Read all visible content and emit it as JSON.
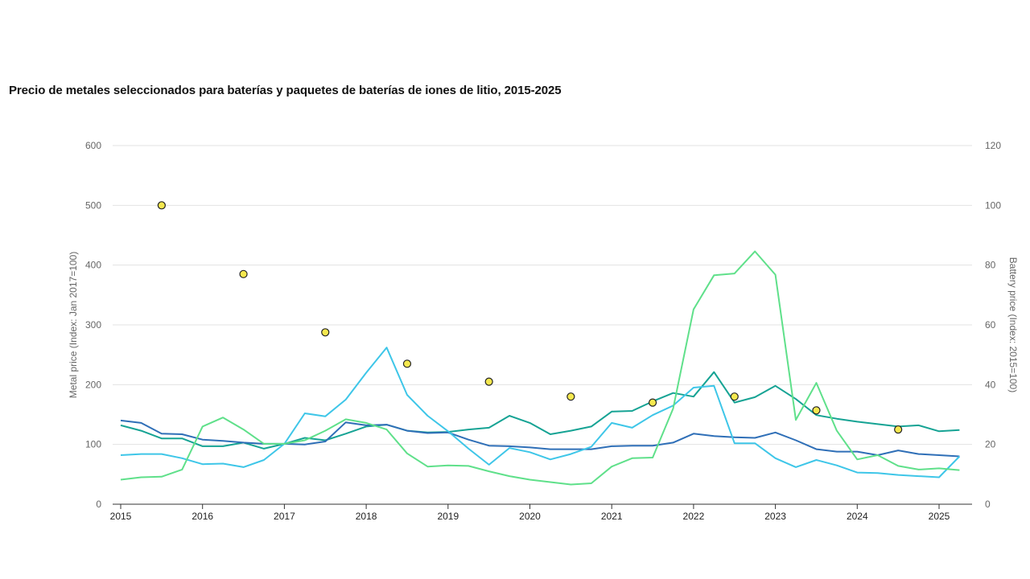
{
  "chart_data": {
    "type": "line",
    "title": "Precio de metales seleccionados para baterías y paquetes de baterías de iones de litio, 2015-2025",
    "ylabel_left": "Metal price (Index: Jan 2017=100)",
    "ylabel_right": "Battery price (Index: 2015=100)",
    "ylim_left": [
      0,
      600
    ],
    "ylim_right": [
      0,
      120
    ],
    "xlim": [
      2015,
      2025.35
    ],
    "y_ticks_left": [
      "0",
      "100",
      "200",
      "300",
      "400",
      "500",
      "600"
    ],
    "y_ticks_right": [
      "0",
      "20",
      "40",
      "60",
      "80",
      "100",
      "120"
    ],
    "x_ticks": [
      "2015",
      "2016",
      "2017",
      "2018",
      "2019",
      "2020",
      "2021",
      "2022",
      "2023",
      "2024",
      "2025"
    ],
    "grid": true,
    "series": [
      {
        "color": "#16a394",
        "x": [
          2015,
          2015.25,
          2015.5,
          2015.75,
          2016,
          2016.25,
          2016.5,
          2016.75,
          2017,
          2017.25,
          2017.5,
          2017.75,
          2018,
          2018.25,
          2018.5,
          2018.75,
          2019,
          2019.25,
          2019.5,
          2019.75,
          2020,
          2020.25,
          2020.5,
          2020.75,
          2021,
          2021.25,
          2021.5,
          2021.75,
          2022,
          2022.25,
          2022.5,
          2022.75,
          2023,
          2023.25,
          2023.5,
          2023.75,
          2024,
          2024.25,
          2024.5,
          2024.75,
          2025,
          2025.25
        ],
        "y": [
          132,
          123,
          110,
          110,
          97,
          97,
          103,
          93,
          101,
          111,
          107,
          118,
          130,
          133,
          123,
          120,
          121,
          125,
          128,
          148,
          136,
          117,
          123,
          130,
          155,
          156,
          172,
          186,
          180,
          221,
          170,
          179,
          198,
          176,
          149,
          143,
          138,
          134,
          130,
          132,
          122,
          124
        ]
      },
      {
        "color": "#2f6fb7",
        "x": [
          2015,
          2015.25,
          2015.5,
          2015.75,
          2016,
          2016.25,
          2016.5,
          2016.75,
          2017,
          2017.25,
          2017.5,
          2017.75,
          2018,
          2018.25,
          2018.5,
          2018.75,
          2019,
          2019.25,
          2019.5,
          2019.75,
          2020,
          2020.25,
          2020.5,
          2020.75,
          2021,
          2021.25,
          2021.5,
          2021.75,
          2022,
          2022.25,
          2022.5,
          2022.75,
          2023,
          2023.25,
          2023.5,
          2023.75,
          2024,
          2024.25,
          2024.5,
          2024.75,
          2025,
          2025.25
        ],
        "y": [
          140,
          136,
          118,
          117,
          108,
          106,
          103,
          101,
          101,
          100,
          105,
          137,
          132,
          133,
          123,
          119,
          120,
          108,
          98,
          97,
          95,
          92,
          92,
          92,
          97,
          98,
          98,
          103,
          118,
          114,
          112,
          111,
          120,
          107,
          92,
          88,
          88,
          82,
          90,
          84,
          82,
          80
        ]
      },
      {
        "color": "#3ec6e8",
        "x": [
          2015,
          2015.25,
          2015.5,
          2015.75,
          2016,
          2016.25,
          2016.5,
          2016.75,
          2017,
          2017.25,
          2017.5,
          2017.75,
          2018,
          2018.25,
          2018.5,
          2018.75,
          2019,
          2019.25,
          2019.5,
          2019.75,
          2020,
          2020.25,
          2020.5,
          2020.75,
          2021,
          2021.25,
          2021.5,
          2021.75,
          2022,
          2022.25,
          2022.5,
          2022.75,
          2023,
          2023.25,
          2023.5,
          2023.75,
          2024,
          2024.25,
          2024.5,
          2024.75,
          2025,
          2025.25
        ],
        "y": [
          82,
          84,
          84,
          77,
          67,
          68,
          62,
          74,
          101,
          152,
          147,
          175,
          220,
          262,
          183,
          148,
          122,
          93,
          66,
          94,
          87,
          75,
          84,
          96,
          136,
          128,
          149,
          165,
          195,
          198,
          102,
          102,
          77,
          62,
          74,
          65,
          53,
          52,
          49,
          47,
          45,
          80
        ]
      },
      {
        "color": "#5fe08a",
        "x": [
          2015,
          2015.25,
          2015.5,
          2015.75,
          2016,
          2016.25,
          2016.5,
          2016.75,
          2017,
          2017.25,
          2017.5,
          2017.75,
          2018,
          2018.25,
          2018.5,
          2018.75,
          2019,
          2019.25,
          2019.5,
          2019.75,
          2020,
          2020.25,
          2020.5,
          2020.75,
          2021,
          2021.25,
          2021.5,
          2021.75,
          2022,
          2022.25,
          2022.5,
          2022.75,
          2023,
          2023.25,
          2023.5,
          2023.75,
          2024,
          2024.25,
          2024.5,
          2024.75,
          2025,
          2025.25
        ],
        "y": [
          41,
          45,
          46,
          58,
          130,
          145,
          125,
          101,
          101,
          107,
          123,
          142,
          136,
          125,
          85,
          63,
          65,
          64,
          55,
          47,
          41,
          37,
          33,
          35,
          63,
          77,
          78,
          160,
          326,
          383,
          386,
          423,
          384,
          141,
          203,
          123,
          75,
          82,
          64,
          58,
          60,
          57
        ]
      }
    ],
    "battery_points": {
      "color": "#f5e84f",
      "axis": "right",
      "x": [
        2015.5,
        2016.5,
        2017.5,
        2018.5,
        2019.5,
        2020.5,
        2021.5,
        2022.5,
        2023.5,
        2024.5
      ],
      "y": [
        100,
        77,
        57.5,
        47,
        41,
        36,
        34,
        36,
        31.4,
        25
      ]
    }
  }
}
